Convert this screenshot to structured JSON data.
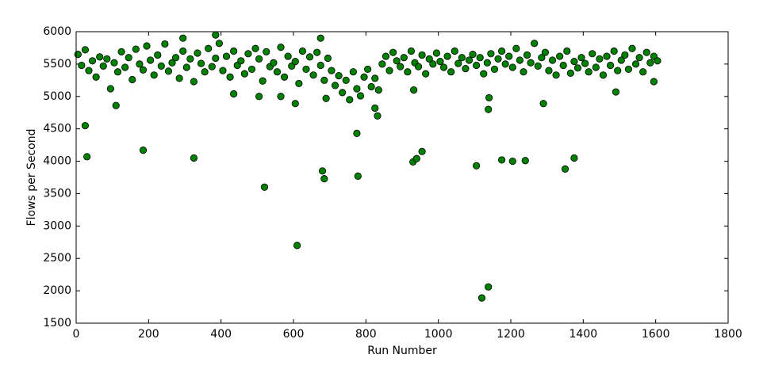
{
  "chart_data": {
    "type": "scatter",
    "x_label": "Run Number",
    "y_label": "Flows per Second",
    "x": [
      5,
      15,
      25,
      35,
      45,
      55,
      65,
      75,
      85,
      95,
      105,
      115,
      125,
      135,
      145,
      155,
      165,
      175,
      185,
      195,
      205,
      215,
      225,
      235,
      245,
      255,
      265,
      275,
      285,
      295,
      305,
      315,
      325,
      335,
      345,
      355,
      365,
      375,
      385,
      395,
      405,
      415,
      425,
      435,
      445,
      455,
      465,
      475,
      485,
      495,
      505,
      515,
      525,
      535,
      545,
      555,
      565,
      575,
      585,
      595,
      605,
      615,
      625,
      635,
      645,
      655,
      665,
      675,
      685,
      695,
      705,
      715,
      725,
      735,
      745,
      755,
      765,
      775,
      785,
      795,
      805,
      815,
      825,
      835,
      845,
      855,
      865,
      875,
      885,
      895,
      905,
      915,
      925,
      935,
      945,
      955,
      965,
      975,
      985,
      995,
      1005,
      1015,
      1025,
      1035,
      1045,
      1055,
      1065,
      1075,
      1085,
      1095,
      1105,
      1115,
      1125,
      1135,
      1145,
      1155,
      1165,
      1175,
      1185,
      1195,
      1205,
      1215,
      1225,
      1235,
      1245,
      1255,
      1265,
      1275,
      1285,
      1295,
      1305,
      1315,
      1325,
      1335,
      1345,
      1355,
      1365,
      1375,
      1385,
      1395,
      1405,
      1415,
      1425,
      1435,
      1445,
      1455,
      1465,
      1475,
      1485,
      1495,
      1505,
      1515,
      1525,
      1535,
      1545,
      1555,
      1565,
      1575,
      1585,
      1595,
      1605,
      25,
      30,
      110,
      185,
      325,
      435,
      505,
      520,
      565,
      605,
      610,
      680,
      685,
      690,
      775,
      778,
      825,
      832,
      930,
      940,
      955,
      932,
      1105,
      1120,
      1138,
      1138,
      1140,
      1175,
      1205,
      1240,
      1290,
      1350,
      1375,
      1490,
      1595,
      385,
      295,
      675
    ],
    "values": [
      5650,
      5480,
      5720,
      5400,
      5550,
      5300,
      5610,
      5470,
      5580,
      5120,
      5520,
      5380,
      5690,
      5450,
      5600,
      5260,
      5730,
      5500,
      5410,
      5780,
      5560,
      5330,
      5640,
      5470,
      5810,
      5390,
      5520,
      5600,
      5280,
      5700,
      5450,
      5580,
      5230,
      5670,
      5510,
      5380,
      5740,
      5460,
      5590,
      5820,
      5400,
      5620,
      5300,
      5700,
      5480,
      5550,
      5350,
      5660,
      5420,
      5740,
      5580,
      5240,
      5690,
      5460,
      5520,
      5380,
      5760,
      5300,
      5620,
      5470,
      5540,
      5200,
      5700,
      5420,
      5610,
      5330,
      5680,
      5480,
      5250,
      5590,
      5400,
      5170,
      5320,
      5060,
      5250,
      4950,
      5380,
      5120,
      5010,
      5300,
      5420,
      5150,
      5280,
      5100,
      5500,
      5620,
      5400,
      5680,
      5550,
      5460,
      5600,
      5380,
      5700,
      5520,
      5460,
      5640,
      5350,
      5580,
      5500,
      5670,
      5540,
      5450,
      5620,
      5380,
      5700,
      5510,
      5600,
      5430,
      5560,
      5650,
      5480,
      5600,
      5350,
      5520,
      5660,
      5420,
      5580,
      5700,
      5500,
      5620,
      5450,
      5740,
      5560,
      5380,
      5640,
      5520,
      5820,
      5470,
      5600,
      5680,
      5400,
      5560,
      5330,
      5620,
      5480,
      5700,
      5360,
      5540,
      5440,
      5600,
      5510,
      5380,
      5660,
      5450,
      5580,
      5330,
      5620,
      5480,
      5700,
      5400,
      5560,
      5640,
      5420,
      5740,
      5500,
      5600,
      5380,
      5680,
      5520,
      5620,
      5550,
      4550,
      4070,
      4860,
      4170,
      4050,
      5040,
      5000,
      3600,
      5000,
      4890,
      2700,
      3850,
      3730,
      4970,
      4430,
      3770,
      4820,
      4700,
      3990,
      4040,
      4150,
      5100,
      3930,
      1890,
      2060,
      4800,
      4980,
      4020,
      4000,
      4010,
      4890,
      3880,
      4050,
      5070,
      5230,
      5950,
      5900,
      5900
    ],
    "color": "#008000",
    "edgecolor": "#000000",
    "xlim": [
      0,
      1800
    ],
    "xticks": [
      0,
      200,
      400,
      600,
      800,
      1000,
      1200,
      1400,
      1600,
      1800
    ],
    "ylim": [
      1500,
      6000
    ],
    "yticks": [
      1500,
      2000,
      2500,
      3000,
      3500,
      4000,
      4500,
      5000,
      5500,
      6000
    ]
  }
}
